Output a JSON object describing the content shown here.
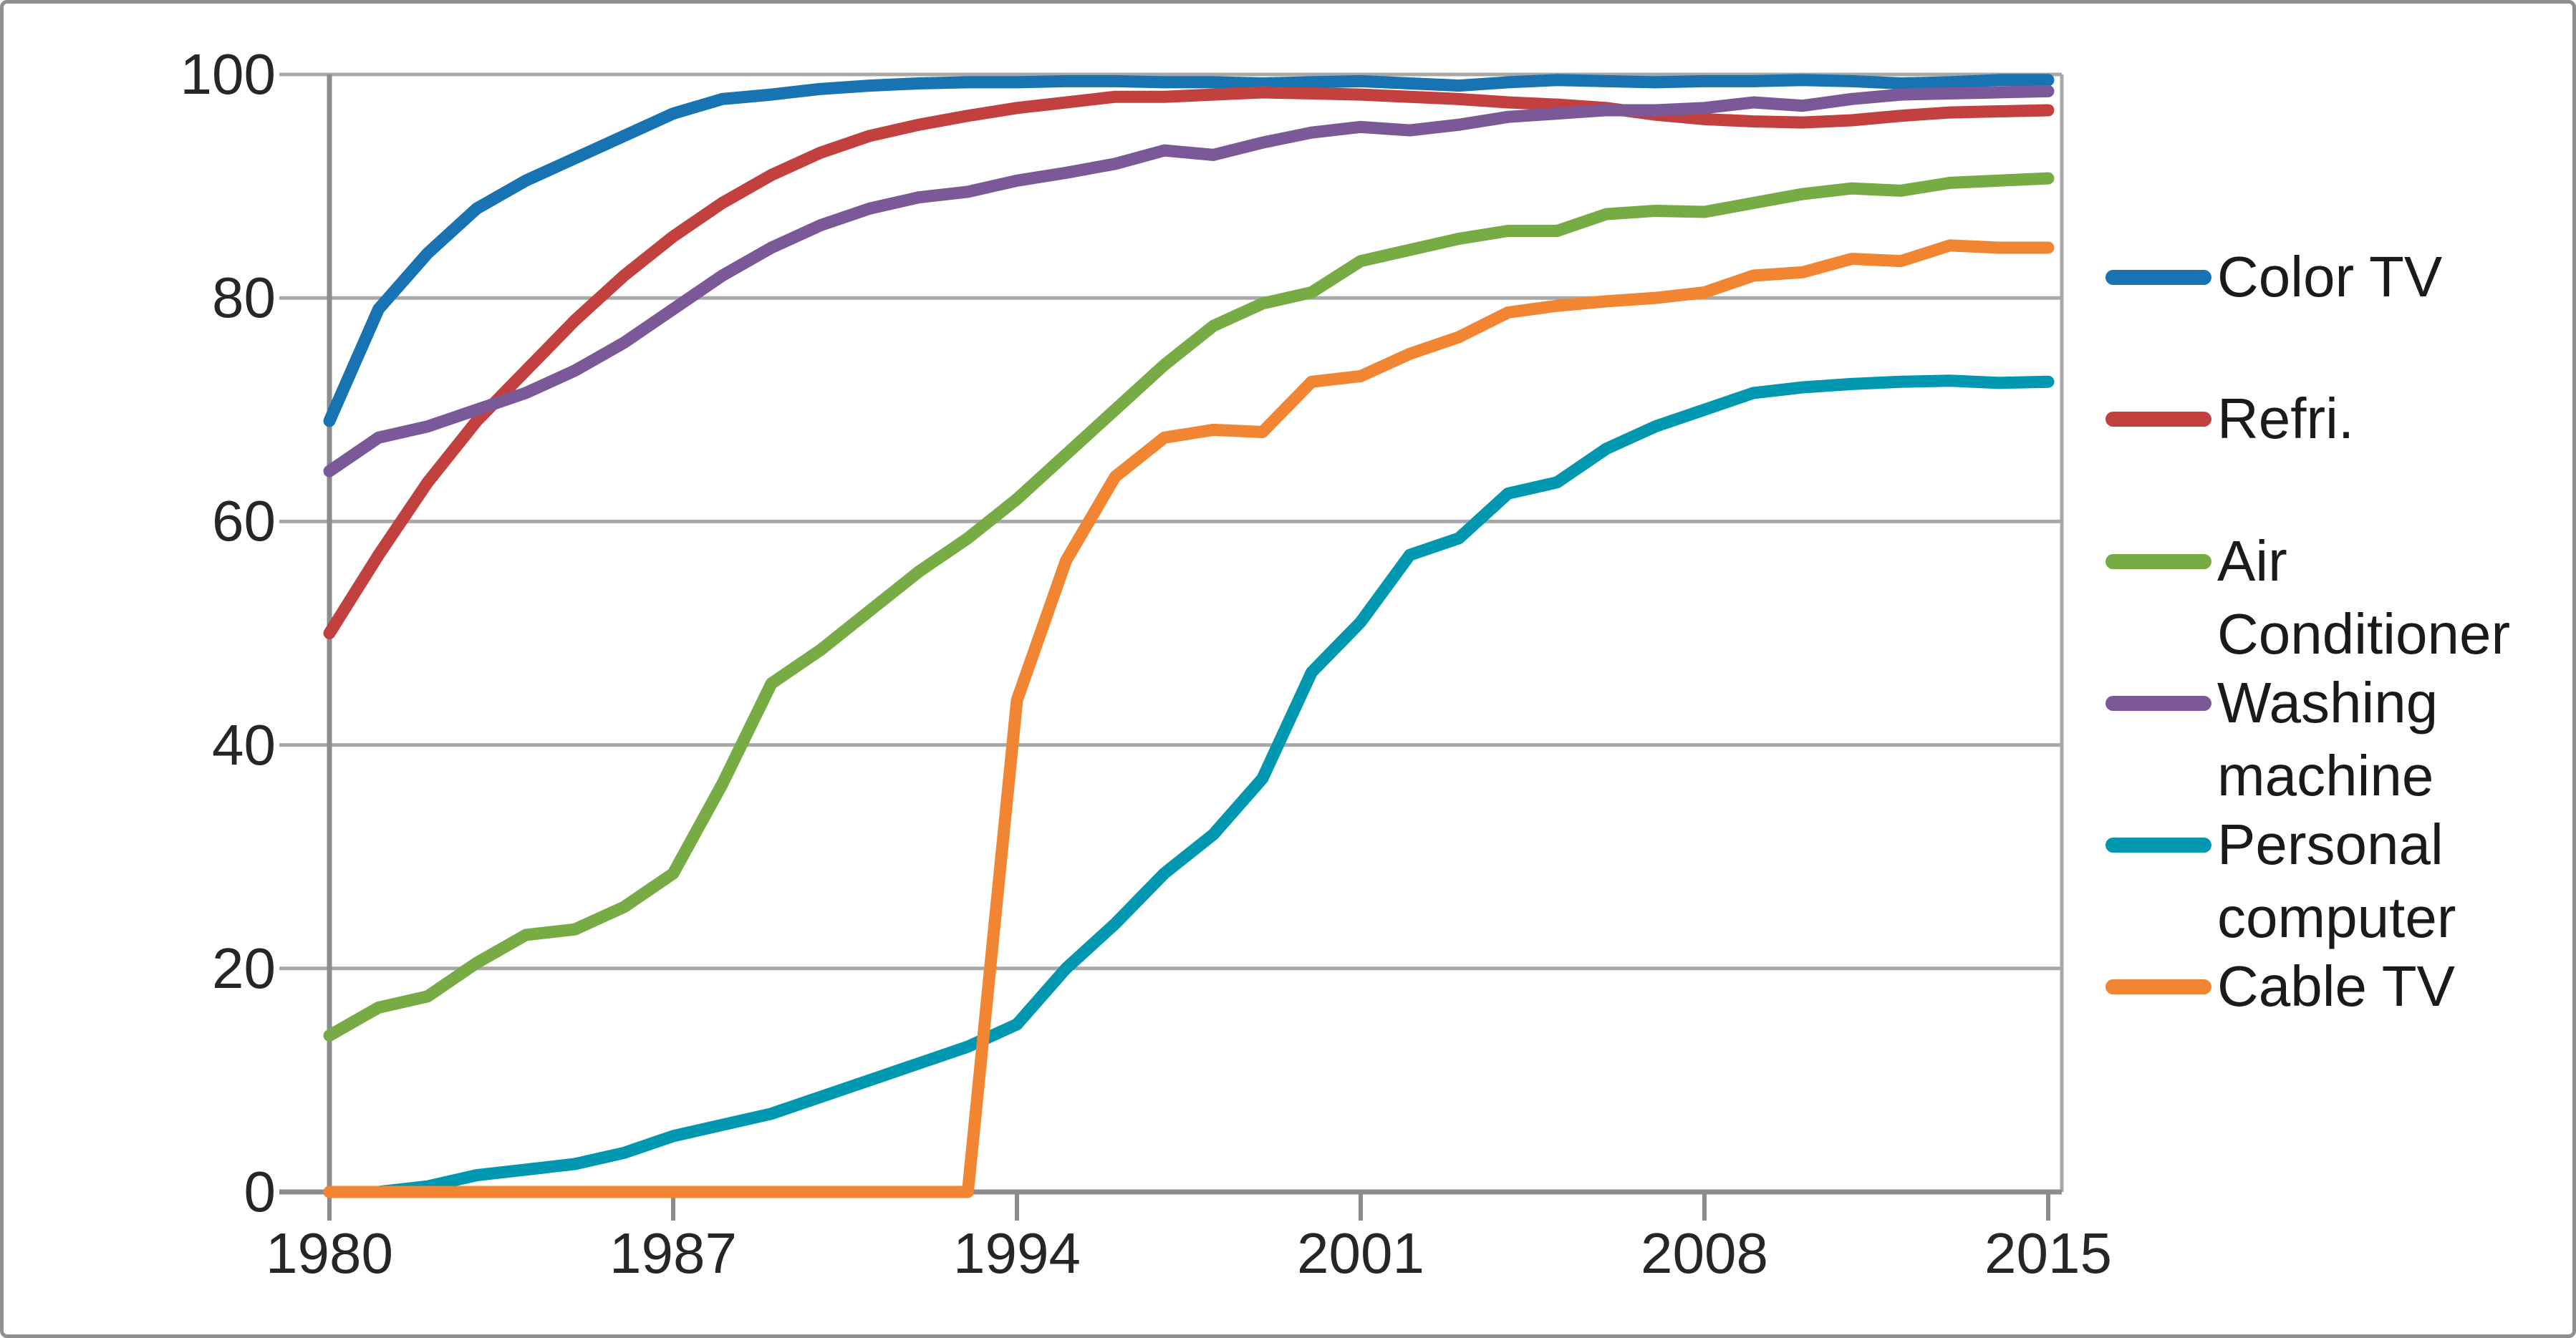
{
  "chart_data": {
    "type": "line",
    "title": "",
    "xlabel": "",
    "ylabel": "",
    "xlim": [
      1980,
      2015
    ],
    "ylim": [
      0,
      100
    ],
    "grid": "horizontal",
    "legend_position": "right",
    "x_tick_years": [
      1980,
      1987,
      1994,
      2001,
      2008,
      2015
    ],
    "x_tick_labels": [
      "1980",
      "1987",
      "1994",
      "2001",
      "2008",
      "2015"
    ],
    "y_ticks": [
      100,
      80,
      60,
      40,
      20,
      0
    ],
    "y_tick_labels": [
      "100",
      "80",
      "60",
      "40",
      "20",
      "0"
    ],
    "years": [
      1980,
      1981,
      1982,
      1983,
      1984,
      1985,
      1986,
      1987,
      1988,
      1989,
      1990,
      1991,
      1992,
      1993,
      1994,
      1995,
      1996,
      1997,
      1998,
      1999,
      2000,
      2001,
      2002,
      2003,
      2004,
      2005,
      2006,
      2007,
      2008,
      2009,
      2010,
      2011,
      2012,
      2013,
      2014,
      2015
    ],
    "series": [
      {
        "name": "Color TV",
        "color": "#1873B2",
        "values": [
          69,
          79,
          84,
          88,
          90.5,
          92.5,
          94.5,
          96.5,
          97.8,
          98.2,
          98.7,
          99,
          99.2,
          99.3,
          99.3,
          99.4,
          99.4,
          99.3,
          99.3,
          99.2,
          99.3,
          99.4,
          99.2,
          99,
          99.3,
          99.5,
          99.4,
          99.3,
          99.4,
          99.4,
          99.5,
          99.4,
          99.2,
          99.3,
          99.5,
          99.5
        ]
      },
      {
        "name": "Refri.",
        "color": "#C2413F",
        "values": [
          50,
          57,
          63.5,
          69,
          73.5,
          78,
          82,
          85.5,
          88.5,
          91,
          93,
          94.5,
          95.5,
          96.3,
          97,
          97.5,
          98,
          98,
          98.2,
          98.4,
          98.3,
          98.2,
          98,
          97.8,
          97.5,
          97.3,
          97,
          96.4,
          96,
          95.8,
          95.7,
          95.9,
          96.3,
          96.6,
          96.7,
          96.8
        ]
      },
      {
        "name": "Air Conditioner",
        "color": "#77AB43",
        "values": [
          14,
          16.5,
          17.5,
          20.5,
          23,
          23.5,
          25.5,
          28.5,
          36.5,
          45.5,
          48.5,
          52,
          55.5,
          58.5,
          62,
          66,
          70,
          74,
          77.5,
          79.5,
          80.5,
          83.3,
          84.3,
          85.3,
          86,
          86,
          87.5,
          87.8,
          87.7,
          88.5,
          89.3,
          89.8,
          89.6,
          90.3,
          90.5,
          90.7
        ]
      },
      {
        "name": "Washing machine",
        "color": "#7B5999",
        "values": [
          64.5,
          67.5,
          68.5,
          70,
          71.5,
          73.5,
          76,
          79,
          82,
          84.5,
          86.5,
          88,
          89,
          89.5,
          90.5,
          91.2,
          92,
          93.2,
          92.8,
          93.9,
          94.8,
          95.3,
          95,
          95.5,
          96.2,
          96.5,
          96.8,
          96.8,
          97,
          97.5,
          97.2,
          97.8,
          98.2,
          98.3,
          98.4,
          98.5
        ]
      },
      {
        "name": "Personal computer",
        "color": "#0098B0",
        "values": [
          0,
          0,
          0.5,
          1.5,
          2,
          2.5,
          3.5,
          5,
          6,
          7,
          8.5,
          10,
          11.5,
          13,
          15,
          20,
          24,
          28.5,
          32,
          37,
          46.5,
          51,
          57,
          58.5,
          62.5,
          63.5,
          66.5,
          68.5,
          70,
          71.5,
          72,
          72.3,
          72.5,
          72.6,
          72.4,
          72.5
        ]
      },
      {
        "name": "Cable TV",
        "color": "#F28532",
        "values": [
          0,
          0,
          0,
          0,
          0,
          0,
          0,
          0,
          0,
          0,
          0,
          0,
          0,
          0,
          44,
          56.5,
          64,
          67.5,
          68.2,
          68,
          72.5,
          73,
          75,
          76.5,
          78.7,
          79.3,
          79.7,
          80,
          80.5,
          82,
          82.3,
          83.5,
          83.3,
          84.7,
          84.5,
          84.5
        ]
      }
    ]
  }
}
